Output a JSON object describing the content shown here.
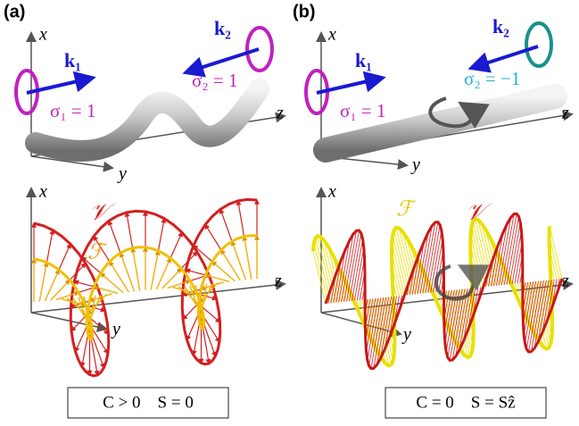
{
  "panels": [
    {
      "label": "(a)",
      "axes": {
        "x": "x",
        "y": "y",
        "z": "z"
      },
      "k1": "k₁",
      "k2": "k₂",
      "sigma1": "σ₁ = 1",
      "sigma2": "σ₂ = 1",
      "field_v": "𝒱",
      "field_f": "ℱ",
      "caption": "C > 0    S = 0"
    },
    {
      "label": "(b)",
      "axes": {
        "x": "x",
        "y": "y",
        "z": "z"
      },
      "k1": "k₁",
      "k2": "k₂",
      "sigma1": "σ₁ = 1",
      "sigma2": "σ₂ = −1",
      "field_v": "𝒱",
      "field_f": "ℱ",
      "caption": "C = 0    S = Sẑ"
    }
  ]
}
